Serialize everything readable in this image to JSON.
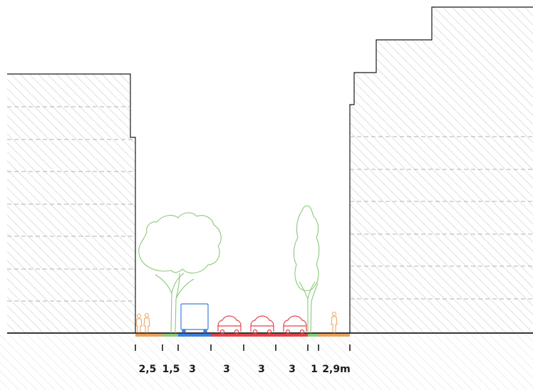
{
  "diagram": {
    "type": "street-cross-section",
    "dimension_labels": [
      "2,5",
      "1,5",
      "3",
      "3",
      "3",
      "3",
      "1",
      "2,9m"
    ],
    "colors": {
      "building_outline": "#1a1a1a",
      "hatch": "#9a9a9a",
      "floor_lines": "#9a9a9a",
      "ground": "#1a1a1a",
      "sidewalk": "#e8a25a",
      "green_strip": "#8cc97a",
      "transit_lane": "#3f7fd9",
      "car_lane": "#e0444d",
      "tree": "#8cc97a",
      "pedestrian": "#e8a25a",
      "bus": "#3f7fd9",
      "car": "#e0444d"
    },
    "icons": [
      "pedestrian-icon",
      "tree-icon",
      "bus-icon",
      "car-icon"
    ]
  }
}
